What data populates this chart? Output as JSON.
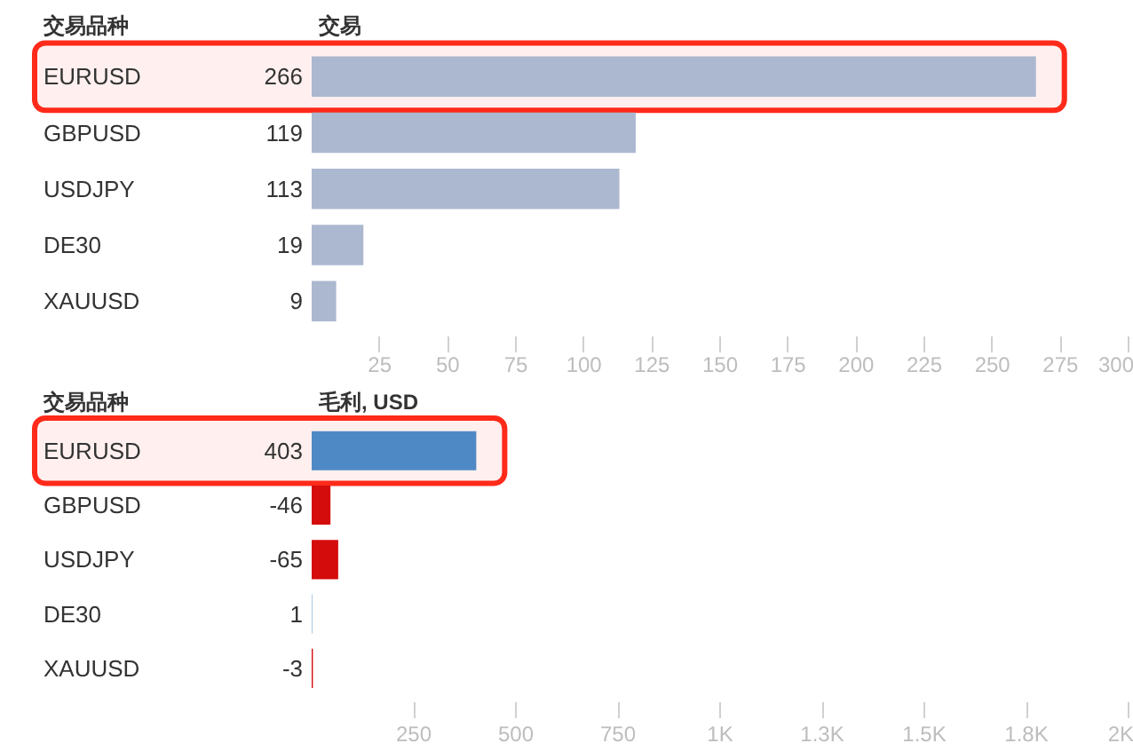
{
  "chart_data": [
    {
      "type": "bar",
      "orientation": "horizontal",
      "ylabel": "交易品种",
      "xlabel": "交易",
      "categories": [
        "EURUSD",
        "GBPUSD",
        "USDJPY",
        "DE30",
        "XAUUSD"
      ],
      "values": [
        266,
        119,
        113,
        19,
        9
      ],
      "color": "#abb8cf",
      "data_labels": true,
      "xlim": [
        0,
        300
      ],
      "xticks": [
        25,
        50,
        75,
        100,
        125,
        150,
        175,
        200,
        225,
        250,
        275,
        300
      ],
      "bands": [
        {
          "axis": "y",
          "from": "EURUSD",
          "to": "EURUSD",
          "color": "#ff2a1a"
        }
      ]
    },
    {
      "type": "bar",
      "orientation": "horizontal",
      "ylabel": "交易品种",
      "xlabel": "毛利, USD",
      "categories": [
        "EURUSD",
        "GBPUSD",
        "USDJPY",
        "DE30",
        "XAUUSD"
      ],
      "values": [
        403,
        -46,
        -65,
        1,
        -3
      ],
      "base": [
        0,
        46,
        65,
        0,
        3
      ],
      "colors": [
        "#4f89c5",
        "#d40c0c",
        "#d40c0c",
        "#4f89c5",
        "#d40c0c"
      ],
      "data_labels": true,
      "xlim": [
        0,
        2000
      ],
      "xticks": [
        250,
        500,
        750,
        {
          "value": 1000,
          "label": "1K"
        },
        {
          "value": 1250,
          "label": "1.3K"
        },
        {
          "value": 1500,
          "label": "1.5K"
        },
        {
          "value": 1750,
          "label": "1.8K"
        },
        {
          "value": 2000,
          "label": "2K"
        }
      ],
      "bands": [
        {
          "axis": "y",
          "from": "EURUSD",
          "to": "EURUSD",
          "color": "#ff2a1a"
        }
      ]
    }
  ]
}
